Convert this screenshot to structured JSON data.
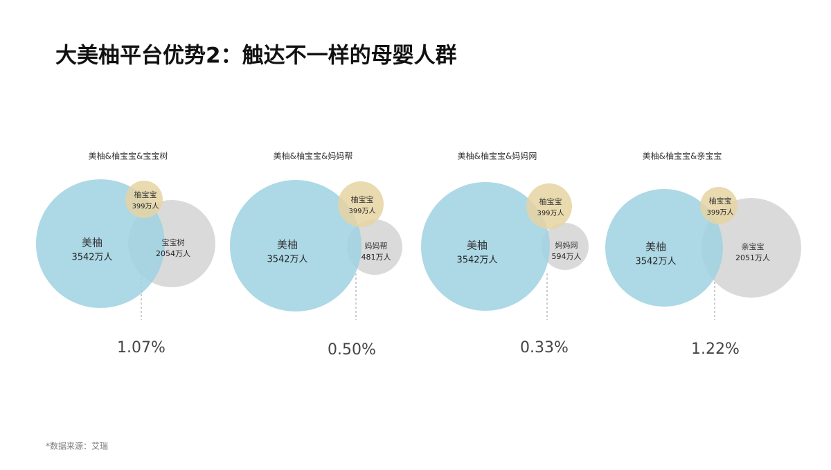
{
  "title": "大美柚平台优势2：触达不一样的母婴人群",
  "panels": [
    {
      "label": "美柚&柚宝宝&宝宝树",
      "circles": [
        {
          "name": "美柚",
          "value": "3542万人"
        },
        {
          "name": "柚宝宝",
          "value": "399万人"
        },
        {
          "name": "宝宝树",
          "value": "2054万人"
        }
      ],
      "overlap": "1.07%"
    },
    {
      "label": "美柚&柚宝宝&妈妈帮",
      "circles": [
        {
          "name": "美柚",
          "value": "3542万人"
        },
        {
          "name": "柚宝宝",
          "value": "399万人"
        },
        {
          "name": "妈妈帮",
          "value": "481万人"
        }
      ],
      "overlap": "0.50%"
    },
    {
      "label": "美柚&柚宝宝&妈妈网",
      "circles": [
        {
          "name": "美柚",
          "value": "3542万人"
        },
        {
          "name": "柚宝宝",
          "value": "399万人"
        },
        {
          "name": "妈妈网",
          "value": "594万人"
        }
      ],
      "overlap": "0.33%"
    },
    {
      "label": "美柚&柚宝宝&亲宝宝",
      "circles": [
        {
          "name": "美柚",
          "value": "3542万人"
        },
        {
          "name": "柚宝宝",
          "value": "399万人"
        },
        {
          "name": "亲宝宝",
          "value": "2051万人"
        }
      ],
      "overlap": "1.22%"
    }
  ],
  "footnote": "*数据来源：艾瑞"
}
